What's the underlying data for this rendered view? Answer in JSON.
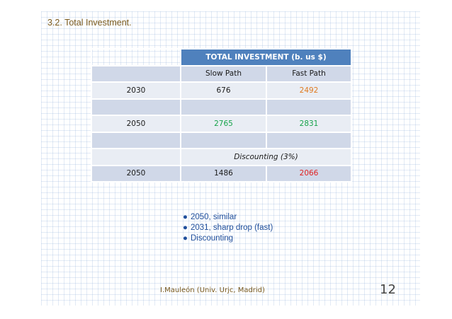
{
  "slide": {
    "title": "3.2. Total Investment.",
    "table": {
      "header": "TOTAL INVESTMENT (b. us $)",
      "col_slow": "Slow Path",
      "col_fast": "Fast Path",
      "rows": [
        {
          "year": "2030",
          "slow": "676",
          "fast": "2492"
        },
        {
          "year": "2050",
          "slow": "2765",
          "fast": "2831"
        }
      ],
      "discount_label": "Discounting (3%)",
      "discount_row": {
        "year": "2050",
        "slow": "1486",
        "fast": "2066"
      }
    },
    "bullets": [
      "2050, similar",
      "2031, sharp drop (fast)",
      "Discounting"
    ],
    "bullet_glyph": "●",
    "footer": "I.Mauleón (Univ. Urjc, Madrid)",
    "page_number": "12",
    "colors": {
      "header_bg": "#4f81bd",
      "row_dark": "#d0d8e8",
      "row_light": "#e9edf4",
      "orange": "#e07b22",
      "green": "#16a34a",
      "red": "#e02020",
      "bullet_text": "#1f4e9b",
      "title_text": "#7a5a1e"
    }
  }
}
